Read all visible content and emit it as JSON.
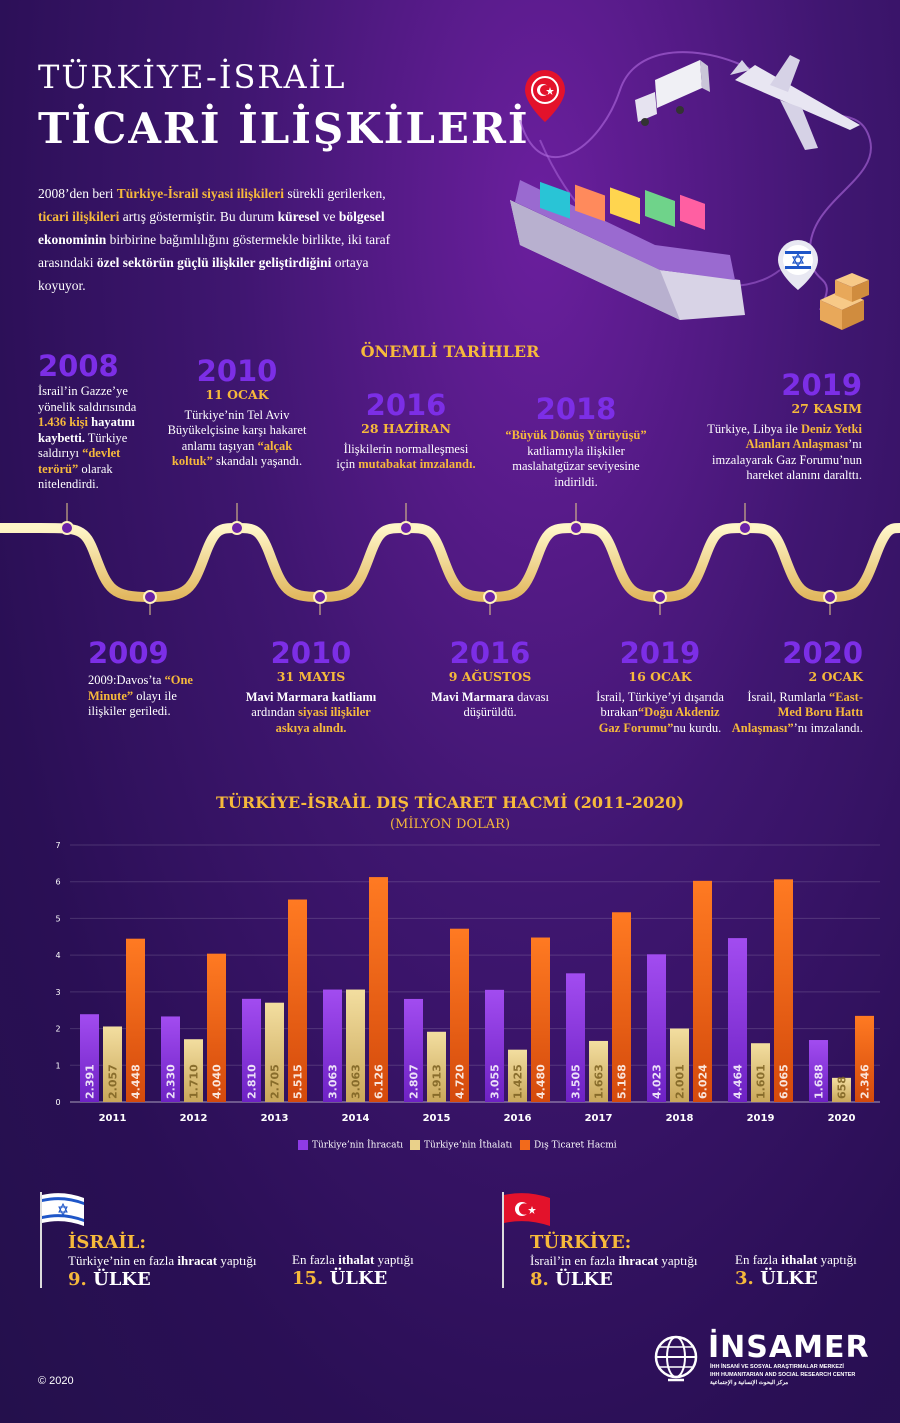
{
  "header": {
    "title_line1": "TÜRKİYE-İSRAİL",
    "title_line2": "TİCARİ İLİŞKİLERİ"
  },
  "intro": {
    "p1": "2008’den beri ",
    "p2": "Türkiye-İsrail siyasi ilişkileri",
    "p3": " sürekli gerilerken, ",
    "p4": "ticari ilişkileri",
    "p5": " artış göstermiştir. Bu durum ",
    "p6": "küresel",
    "p7": " ve ",
    "p8": "bölgesel ekonominin",
    "p9": " birbirine bağımlılığını göstermekle birlikte, iki taraf arasındaki ",
    "p10": "özel sektörün güçlü ilişkiler geliştirdiğini",
    "p11": " ortaya koyuyor."
  },
  "timeline": {
    "heading": "ÖNEMLİ TARİHLER",
    "e2008": {
      "year": "2008",
      "t1": "İsrail’in Gazze’ye yönelik saldırısında ",
      "t2": "1.436 kişi",
      "t3": " hayatını kaybetti.",
      "t4": " Türkiye saldırıyı ",
      "t5": "“devlet terörü”",
      "t6": " olarak nitelendirdi."
    },
    "e2010a": {
      "year": "2010",
      "date": "11 OCAK",
      "t1": "Türkiye’nin Tel Aviv Büyükelçisine karşı hakaret anlamı taşıyan ",
      "t2": "“alçak koltuk”",
      "t3": " skandalı yaşandı."
    },
    "e2016a": {
      "year": "2016",
      "date": "28 HAZİRAN",
      "t1": "İlişkilerin normalleşmesi için ",
      "t2": "mutabakat imzalandı."
    },
    "e2018": {
      "year": "2018",
      "t1": "“Büyük Dönüş Yürüyüşü”",
      "t2": " katliamıyla ilişkiler maslahatgüzar seviyesine indirildi."
    },
    "e2019a": {
      "year": "2019",
      "date": "27 KASIM",
      "t1": "Türkiye, Libya ile ",
      "t2": "Deniz Yetki Alanları Anlaşması",
      "t3": "’nı imzalayarak Gaz Forumu’nun hareket alanını daralttı."
    },
    "e2009": {
      "year": "2009",
      "t1": "2009:Davos’ta ",
      "t2": "“One Minute”",
      "t3": " olayı ile ilişkiler geriledi."
    },
    "e2010b": {
      "year": "2010",
      "date": "31 MAYIS",
      "t1": "Mavi Marmara katliamı",
      "t2": " ardından ",
      "t3": "siyasi ilişkiler askıya alındı."
    },
    "e2016b": {
      "year": "2016",
      "date": "9 AĞUSTOS",
      "t1": "Mavi Marmara",
      "t2": " davası düşürüldü."
    },
    "e2019b": {
      "year": "2019",
      "date": "16 OCAK",
      "t1": "İsrail, Türkiye’yi dışarıda bırakan",
      "t2": "“Doğu Akdeniz Gaz Forumu”",
      "t3": "nu kurdu."
    },
    "e2020": {
      "year": "2020",
      "date": "2 OCAK",
      "t1": "İsrail, Rumlarla ",
      "t2": "“East-Med Boru Hattı Anlaşması”",
      "t3": "’nı imzalandı."
    }
  },
  "chart_data": {
    "type": "bar",
    "title": "TÜRKİYE-İSRAİL DIŞ TİCARET HACMİ (2011-2020)",
    "subtitle": "(MİLYON DOLAR)",
    "categories": [
      "2011",
      "2012",
      "2013",
      "2014",
      "2015",
      "2016",
      "2017",
      "2018",
      "2019",
      "2020"
    ],
    "ylim": [
      0,
      7
    ],
    "yticks": [
      "0",
      "1",
      "2",
      "3",
      "4",
      "5",
      "6",
      "7"
    ],
    "series": [
      {
        "name": "Türkiye’nin İhracatı",
        "values": [
          2.391,
          2.33,
          2.81,
          3.063,
          2.807,
          3.055,
          3.505,
          4.023,
          4.464,
          1.688
        ],
        "labels": [
          "2.391",
          "2.330",
          "2.810",
          "3.063",
          "2.807",
          "3.055",
          "3.505",
          "4.023",
          "4.464",
          "1.688"
        ]
      },
      {
        "name": "Türkiye’nin İthalatı",
        "values": [
          2.057,
          1.71,
          2.705,
          3.063,
          1.913,
          1.425,
          1.663,
          2.001,
          1.601,
          0.658
        ],
        "labels": [
          "2.057",
          "1.710",
          "2.705",
          "3.063",
          "1.913",
          "1.425",
          "1.663",
          "2.001",
          "1.601",
          "658"
        ]
      },
      {
        "name": "Dış Ticaret Hacmi",
        "values": [
          4.448,
          4.04,
          5.515,
          6.126,
          4.72,
          4.48,
          5.168,
          6.024,
          6.065,
          2.346
        ],
        "labels": [
          "4.448",
          "4.040",
          "5.515",
          "6.126",
          "4.720",
          "4.480",
          "5.168",
          "6.024",
          "6.065",
          "2.346"
        ]
      }
    ],
    "colors": [
      "#8e3be6",
      "#e9d08a",
      "#f26a1b"
    ],
    "legend_position": "bottom"
  },
  "countries": {
    "israel": {
      "name": "İSRAİL:",
      "l1a": "Türkiye’nin en fazla ",
      "l1b": "ihracat",
      "l1c": " yaptığı",
      "r1n": "9.",
      "r1": " ÜLKE",
      "l2a": "En fazla ",
      "l2b": "ithalat",
      "l2c": " yaptığı",
      "r2n": "15.",
      "r2": " ÜLKE"
    },
    "turkey": {
      "name": "TÜRKİYE:",
      "l1a": "İsrail’in en fazla ",
      "l1b": "ihracat",
      "l1c": " yaptığı",
      "r1n": "8.",
      "r1": " ÜLKE",
      "l2a": "En fazla ",
      "l2b": "ithalat",
      "l2c": " yaptığı",
      "r2n": "3.",
      "r2": " ÜLKE"
    }
  },
  "footer": {
    "copyright": "© 2020",
    "logo": "İNSAMER",
    "logo_l1": "İHH İNSANİ VE SOSYAL ARAŞTIRMALAR MERKEZİ",
    "logo_l2": "IHH HUMANITARIAN AND SOCIAL RESEARCH CENTER",
    "logo_l3": "مركز البحوث الإنسانية و الإجتماعية"
  }
}
